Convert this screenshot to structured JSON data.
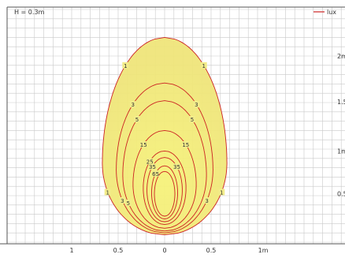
{
  "chart_data": {
    "type": "contour",
    "annotation": "H = 0.3m",
    "legend": {
      "label": "lux",
      "placement": "top-right",
      "color": "#cc2222"
    },
    "x_ticks": [
      "1",
      "0.5",
      "0",
      "0.5",
      "1m"
    ],
    "y_ticks": [
      "0.5",
      "1m",
      "1.5",
      "2m"
    ],
    "xlim": [
      -1.75,
      1.9
    ],
    "ylim": [
      0,
      2.3
    ],
    "isolux": [
      {
        "level": 1,
        "bottom": 0.08,
        "top": 2.2,
        "halfwidth": 0.67,
        "widest_at": 0.85,
        "labels": [
          "1",
          "1",
          "1",
          "1"
        ]
      },
      {
        "level": 3,
        "bottom": 0.1,
        "top": 1.71,
        "halfwidth": 0.52,
        "widest_at": 0.78,
        "labels": [
          "3",
          "3",
          "3",
          "3"
        ]
      },
      {
        "level": 5,
        "bottom": 0.12,
        "top": 1.52,
        "halfwidth": 0.45,
        "widest_at": 0.72,
        "labels": [
          "5",
          "5",
          "5"
        ]
      },
      {
        "level": 15,
        "bottom": 0.15,
        "top": 1.2,
        "halfwidth": 0.34,
        "widest_at": 0.62,
        "labels": [
          "15",
          "15"
        ]
      },
      {
        "level": 25,
        "bottom": 0.19,
        "top": 0.98,
        "halfwidth": 0.23,
        "widest_at": 0.58,
        "labels": [
          "25"
        ]
      },
      {
        "level": 35,
        "bottom": 0.22,
        "top": 0.91,
        "halfwidth": 0.19,
        "widest_at": 0.56,
        "labels": [
          "35",
          "35"
        ]
      },
      {
        "level": 65,
        "bottom": 0.25,
        "top": 0.82,
        "halfwidth": 0.14,
        "widest_at": 0.53,
        "labels": [
          "65"
        ]
      },
      {
        "level": 85,
        "bottom": 0.28,
        "top": 0.76,
        "halfwidth": 0.11,
        "widest_at": 0.52,
        "labels": []
      }
    ],
    "colors": {
      "fill": "#f2ec8a",
      "curve": "#cc2222",
      "grid": "#c9c9c9",
      "frame": "#555555",
      "label": "#333333"
    },
    "grid": true
  }
}
